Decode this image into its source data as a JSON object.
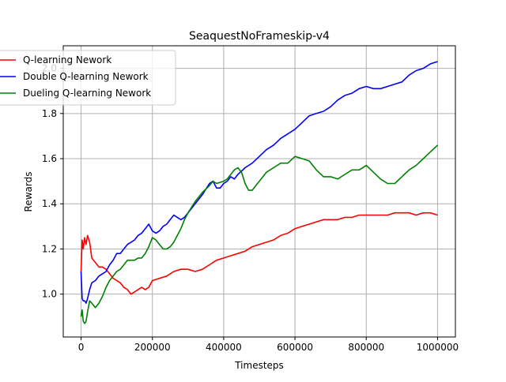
{
  "chart_data": {
    "type": "line",
    "title": "SeaquestNoFrameskip-v4",
    "xlabel": "Timesteps",
    "ylabel": "Rewards",
    "xlim": [
      -50000,
      1050000
    ],
    "ylim": [
      0.81,
      2.1
    ],
    "x_ticks": [
      0,
      200000,
      400000,
      600000,
      800000,
      1000000
    ],
    "x_tick_labels": [
      "0",
      "200000",
      "400000",
      "600000",
      "800000",
      "1000000"
    ],
    "y_ticks": [
      1.0,
      1.2,
      1.4,
      1.6,
      1.8,
      2.0
    ],
    "y_tick_labels": [
      "1.0",
      "1.2",
      "1.4",
      "1.6",
      "1.8",
      "2.0"
    ],
    "grid": true,
    "legend_position": "top-left",
    "series": [
      {
        "name": "Q-learning Nework",
        "color": "#ff0000",
        "x": [
          0,
          3000,
          6000,
          10000,
          14000,
          18000,
          24000,
          30000,
          40000,
          50000,
          60000,
          70000,
          80000,
          90000,
          100000,
          110000,
          120000,
          130000,
          140000,
          150000,
          160000,
          170000,
          180000,
          190000,
          200000,
          220000,
          240000,
          260000,
          280000,
          300000,
          320000,
          340000,
          360000,
          380000,
          400000,
          420000,
          440000,
          460000,
          480000,
          500000,
          520000,
          540000,
          560000,
          580000,
          600000,
          620000,
          640000,
          660000,
          680000,
          700000,
          720000,
          740000,
          760000,
          780000,
          800000,
          820000,
          840000,
          860000,
          880000,
          900000,
          920000,
          940000,
          960000,
          980000,
          1000000
        ],
        "y": [
          1.1,
          1.24,
          1.2,
          1.25,
          1.22,
          1.26,
          1.23,
          1.16,
          1.14,
          1.12,
          1.12,
          1.11,
          1.09,
          1.07,
          1.06,
          1.05,
          1.03,
          1.02,
          1.0,
          1.01,
          1.02,
          1.03,
          1.02,
          1.03,
          1.06,
          1.07,
          1.08,
          1.1,
          1.11,
          1.11,
          1.1,
          1.11,
          1.13,
          1.15,
          1.16,
          1.17,
          1.18,
          1.19,
          1.21,
          1.22,
          1.23,
          1.24,
          1.26,
          1.27,
          1.29,
          1.3,
          1.31,
          1.32,
          1.33,
          1.33,
          1.33,
          1.34,
          1.34,
          1.35,
          1.35,
          1.35,
          1.35,
          1.35,
          1.36,
          1.36,
          1.36,
          1.35,
          1.36,
          1.36,
          1.35
        ]
      },
      {
        "name": "Double Q-learning Nework",
        "color": "#0000ff",
        "x": [
          0,
          3000,
          6000,
          10000,
          14000,
          18000,
          24000,
          30000,
          40000,
          50000,
          60000,
          70000,
          80000,
          90000,
          100000,
          110000,
          120000,
          130000,
          140000,
          150000,
          160000,
          170000,
          180000,
          190000,
          200000,
          210000,
          220000,
          230000,
          240000,
          250000,
          260000,
          270000,
          280000,
          290000,
          300000,
          320000,
          340000,
          360000,
          370000,
          380000,
          390000,
          400000,
          410000,
          420000,
          430000,
          440000,
          460000,
          480000,
          500000,
          520000,
          540000,
          560000,
          580000,
          600000,
          620000,
          640000,
          660000,
          680000,
          700000,
          720000,
          740000,
          760000,
          780000,
          800000,
          820000,
          840000,
          860000,
          880000,
          900000,
          920000,
          940000,
          960000,
          980000,
          1000000
        ],
        "y": [
          1.1,
          0.98,
          0.97,
          0.97,
          0.96,
          0.98,
          1.02,
          1.05,
          1.06,
          1.08,
          1.09,
          1.1,
          1.13,
          1.15,
          1.18,
          1.18,
          1.2,
          1.22,
          1.23,
          1.24,
          1.26,
          1.27,
          1.29,
          1.31,
          1.28,
          1.27,
          1.28,
          1.3,
          1.31,
          1.33,
          1.35,
          1.34,
          1.33,
          1.34,
          1.36,
          1.4,
          1.44,
          1.49,
          1.5,
          1.47,
          1.47,
          1.49,
          1.5,
          1.52,
          1.51,
          1.53,
          1.56,
          1.58,
          1.61,
          1.64,
          1.66,
          1.69,
          1.71,
          1.73,
          1.76,
          1.79,
          1.8,
          1.81,
          1.83,
          1.86,
          1.88,
          1.89,
          1.91,
          1.92,
          1.91,
          1.91,
          1.92,
          1.93,
          1.94,
          1.97,
          1.99,
          2.0,
          2.02,
          2.03
        ]
      },
      {
        "name": "Dueling Q-learning Nework",
        "color": "#008000",
        "x": [
          0,
          3000,
          6000,
          10000,
          14000,
          18000,
          24000,
          30000,
          40000,
          50000,
          60000,
          70000,
          80000,
          90000,
          100000,
          110000,
          120000,
          130000,
          140000,
          150000,
          160000,
          170000,
          180000,
          190000,
          200000,
          210000,
          220000,
          230000,
          240000,
          250000,
          260000,
          270000,
          280000,
          290000,
          300000,
          320000,
          340000,
          360000,
          370000,
          380000,
          400000,
          410000,
          420000,
          430000,
          440000,
          450000,
          460000,
          470000,
          480000,
          490000,
          500000,
          520000,
          540000,
          560000,
          570000,
          580000,
          600000,
          620000,
          640000,
          660000,
          680000,
          700000,
          720000,
          740000,
          760000,
          780000,
          800000,
          820000,
          840000,
          860000,
          880000,
          900000,
          920000,
          940000,
          960000,
          980000,
          1000000
        ],
        "y": [
          0.9,
          0.93,
          0.88,
          0.87,
          0.88,
          0.92,
          0.97,
          0.96,
          0.94,
          0.96,
          0.99,
          1.03,
          1.06,
          1.08,
          1.1,
          1.11,
          1.13,
          1.15,
          1.15,
          1.15,
          1.16,
          1.16,
          1.18,
          1.21,
          1.25,
          1.24,
          1.22,
          1.2,
          1.2,
          1.21,
          1.23,
          1.26,
          1.29,
          1.33,
          1.36,
          1.41,
          1.45,
          1.48,
          1.5,
          1.49,
          1.5,
          1.51,
          1.53,
          1.55,
          1.56,
          1.54,
          1.49,
          1.46,
          1.46,
          1.48,
          1.5,
          1.54,
          1.56,
          1.58,
          1.58,
          1.58,
          1.61,
          1.6,
          1.59,
          1.55,
          1.52,
          1.52,
          1.51,
          1.53,
          1.55,
          1.55,
          1.57,
          1.54,
          1.51,
          1.49,
          1.49,
          1.52,
          1.55,
          1.57,
          1.6,
          1.63,
          1.66
        ]
      }
    ]
  }
}
